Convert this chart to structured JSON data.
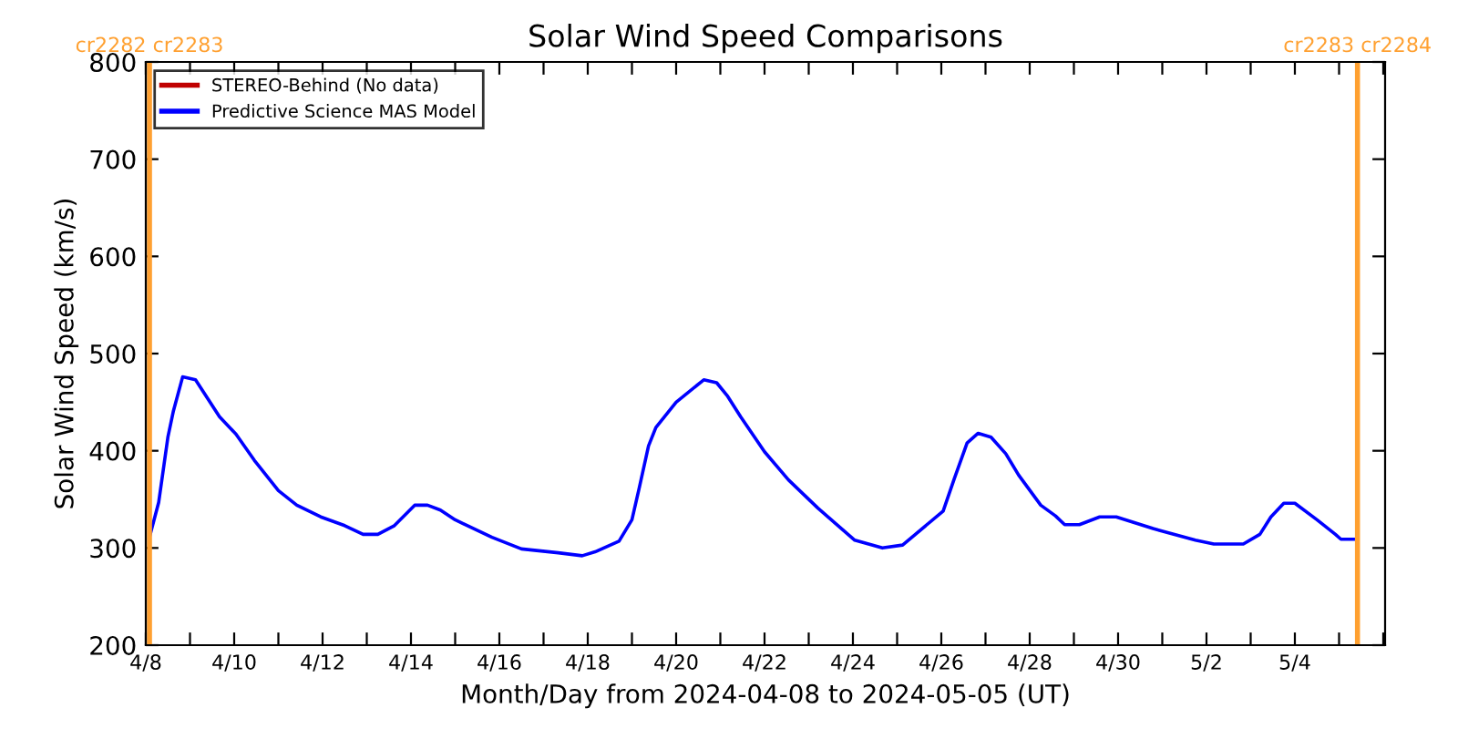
{
  "chart_data": {
    "type": "line",
    "title": "Solar Wind Speed Comparisons",
    "xlabel": "Month/Day from 2024-04-08 to 2024-05-05 (UT)",
    "ylabel": "Solar Wind Speed (km/s)",
    "series": [
      {
        "name": "STEREO-Behind (No data)",
        "color": "#c00000"
      },
      {
        "name": "Predictive Science MAS Model",
        "color": "#0000ff",
        "x": [
          "2024-04-08T02:00",
          "2024-04-08T07:00",
          "2024-04-08T12:00",
          "2024-04-08T15:00",
          "2024-04-08T20:00",
          "2024-04-09T03:00",
          "2024-04-09T16:00",
          "2024-04-10T01:00",
          "2024-04-10T11:00",
          "2024-04-11T00:00",
          "2024-04-11T10:00",
          "2024-04-11T23:00",
          "2024-04-12T12:00",
          "2024-04-12T22:00",
          "2024-04-13T06:00",
          "2024-04-13T15:00",
          "2024-04-14T02:00",
          "2024-04-14T09:00",
          "2024-04-14T16:00",
          "2024-04-15T00:00",
          "2024-04-15T20:00",
          "2024-04-16T12:00",
          "2024-04-17T08:00",
          "2024-04-17T21:00",
          "2024-04-18T04:00",
          "2024-04-18T17:00",
          "2024-04-19T00:00",
          "2024-04-19T04:00",
          "2024-04-19T09:00",
          "2024-04-19T13:00",
          "2024-04-20T00:00",
          "2024-04-20T15:00",
          "2024-04-20T22:00",
          "2024-04-21T04:00",
          "2024-04-21T11:00",
          "2024-04-22T00:00",
          "2024-04-22T13:00",
          "2024-04-23T05:00",
          "2024-04-24T01:00",
          "2024-04-24T16:00",
          "2024-04-25T03:00",
          "2024-04-26T01:00",
          "2024-04-26T07:00",
          "2024-04-26T14:00",
          "2024-04-26T20:00",
          "2024-04-27T03:00",
          "2024-04-27T11:00",
          "2024-04-27T18:00",
          "2024-04-28T06:00",
          "2024-04-28T14:00",
          "2024-04-28T19:00",
          "2024-04-29T03:00",
          "2024-04-29T14:00",
          "2024-04-29T23:00",
          "2024-04-30T19:00",
          "2024-05-01T18:00",
          "2024-05-02T04:00",
          "2024-05-02T20:00",
          "2024-05-03T05:00",
          "2024-05-03T11:00",
          "2024-05-03T18:00",
          "2024-05-04T00:00",
          "2024-05-04T12:00",
          "2024-05-04T22:00",
          "2024-05-05T01:00",
          "2024-05-05T08:00"
        ],
        "values": [
          311,
          347,
          414,
          441,
          476,
          473,
          435,
          417,
          390,
          359,
          344,
          332,
          323,
          314,
          314,
          323,
          344,
          344,
          339,
          329,
          311,
          299,
          295,
          292,
          296,
          307,
          329,
          362,
          405,
          424,
          450,
          473,
          470,
          456,
          435,
          399,
          370,
          341,
          308,
          300,
          303,
          338,
          371,
          408,
          418,
          414,
          397,
          375,
          344,
          333,
          324,
          324,
          332,
          332,
          320,
          308,
          304,
          304,
          314,
          332,
          346,
          346,
          329,
          314,
          309,
          309
        ]
      }
    ],
    "xlim": [
      "2024-04-08T00:00",
      "2024-05-06T01:00"
    ],
    "ylim": [
      200,
      800
    ],
    "xticks": [
      {
        "value": "2024-04-08",
        "label": "4/8"
      },
      {
        "value": "2024-04-09",
        "label": null
      },
      {
        "value": "2024-04-10",
        "label": "4/10"
      },
      {
        "value": "2024-04-11",
        "label": null
      },
      {
        "value": "2024-04-12",
        "label": "4/12"
      },
      {
        "value": "2024-04-13",
        "label": null
      },
      {
        "value": "2024-04-14",
        "label": "4/14"
      },
      {
        "value": "2024-04-15",
        "label": null
      },
      {
        "value": "2024-04-16",
        "label": "4/16"
      },
      {
        "value": "2024-04-17",
        "label": null
      },
      {
        "value": "2024-04-18",
        "label": "4/18"
      },
      {
        "value": "2024-04-19",
        "label": null
      },
      {
        "value": "2024-04-20",
        "label": "4/20"
      },
      {
        "value": "2024-04-21",
        "label": null
      },
      {
        "value": "2024-04-22",
        "label": "4/22"
      },
      {
        "value": "2024-04-23",
        "label": null
      },
      {
        "value": "2024-04-24",
        "label": "4/24"
      },
      {
        "value": "2024-04-25",
        "label": null
      },
      {
        "value": "2024-04-26",
        "label": "4/26"
      },
      {
        "value": "2024-04-27",
        "label": null
      },
      {
        "value": "2024-04-28",
        "label": "4/28"
      },
      {
        "value": "2024-04-29",
        "label": null
      },
      {
        "value": "2024-04-30",
        "label": "4/30"
      },
      {
        "value": "2024-05-01",
        "label": null
      },
      {
        "value": "2024-05-02",
        "label": "5/2"
      },
      {
        "value": "2024-05-03",
        "label": null
      },
      {
        "value": "2024-05-04",
        "label": "5/4"
      },
      {
        "value": "2024-05-05",
        "label": null
      },
      {
        "value": "2024-05-06",
        "label": null
      }
    ],
    "yticks": [
      200,
      300,
      400,
      500,
      600,
      700,
      800
    ],
    "ref_lines": [
      {
        "axis": "x",
        "value": "2024-04-08T02:00",
        "label": "cr2282 cr2283",
        "color": "#ffa030"
      },
      {
        "axis": "x",
        "value": "2024-05-05T10:00",
        "label": "cr2283 cr2284",
        "color": "#ffa030"
      }
    ],
    "legend": "top left",
    "line_style": "solid"
  }
}
